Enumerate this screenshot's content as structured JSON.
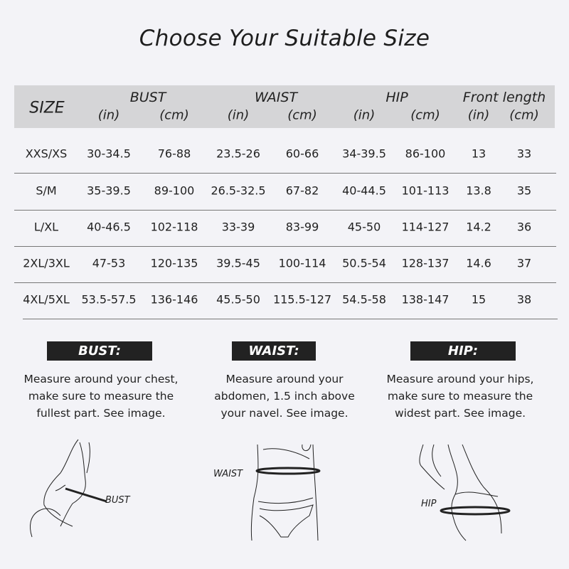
{
  "title": "Choose Your Suitable Size",
  "table": {
    "size_header": "SIZE",
    "groups": [
      "BUST",
      "WAIST",
      "HIP",
      "Front length"
    ],
    "units": [
      "(in)",
      "(cm)",
      "(in)",
      "(cm)",
      "(in)",
      "(cm)",
      "(in)",
      "(cm)"
    ],
    "rows": [
      [
        "XXS/XS",
        "30-34.5",
        "76-88",
        "23.5-26",
        "60-66",
        "34-39.5",
        "86-100",
        "13",
        "33"
      ],
      [
        "S/M",
        "35-39.5",
        "89-100",
        "26.5-32.5",
        "67-82",
        "40-44.5",
        "101-113",
        "13.8",
        "35"
      ],
      [
        "L/XL",
        "40-46.5",
        "102-118",
        "33-39",
        "83-99",
        "45-50",
        "114-127",
        "14.2",
        "36"
      ],
      [
        "2XL/3XL",
        "47-53",
        "120-135",
        "39.5-45",
        "100-114",
        "50.5-54",
        "128-137",
        "14.6",
        "37"
      ],
      [
        "4XL/5XL",
        "53.5-57.5",
        "136-146",
        "45.5-50",
        "115.5-127",
        "54.5-58",
        "138-147",
        "15",
        "38"
      ]
    ]
  },
  "guides": [
    {
      "tag": "BUST:",
      "lines": [
        "Measure around your chest,",
        "make sure to measure the",
        "fullest part. See image."
      ],
      "figure_label": "BUST"
    },
    {
      "tag": "WAIST:",
      "lines": [
        "Measure around your",
        "abdomen, 1.5 inch above",
        "your navel. See image."
      ],
      "figure_label": "WAIST"
    },
    {
      "tag": "HIP:",
      "lines": [
        "Measure around your hips,",
        "make sure to measure the",
        "widest part. See image."
      ],
      "figure_label": "HIP"
    }
  ]
}
